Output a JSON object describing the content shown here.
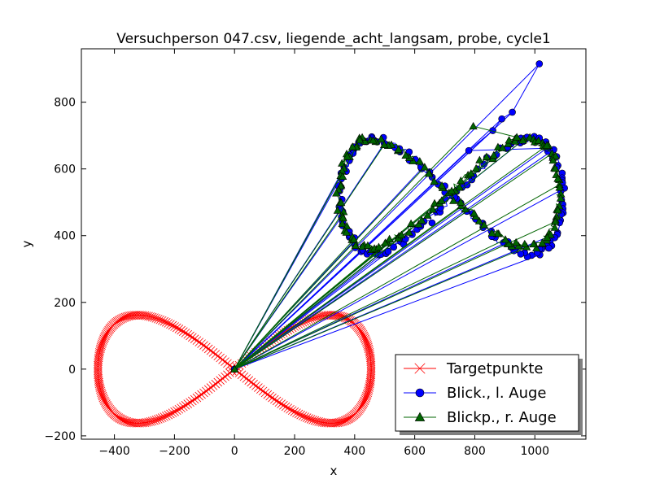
{
  "chart_data": {
    "type": "line",
    "title": "Versuchperson 047.csv, liegende_acht_langsam, probe, cycle1",
    "xlabel": "x",
    "ylabel": "y",
    "xlim": [
      -510,
      1170
    ],
    "ylim": [
      -210,
      960
    ],
    "xticks": [
      -400,
      -200,
      0,
      200,
      400,
      600,
      800,
      1000
    ],
    "yticks": [
      -200,
      0,
      200,
      400,
      600,
      800
    ],
    "xtick_labels": [
      "−400",
      "−200",
      "0",
      "200",
      "400",
      "600",
      "800",
      "1000"
    ],
    "ytick_labels": [
      "−200",
      "0",
      "200",
      "400",
      "600",
      "800"
    ],
    "grid": false,
    "legend_position": "lower-right",
    "series": [
      {
        "name": "Targetpunkte",
        "color": "#ff0000",
        "marker": "x",
        "shape": "figure-eight",
        "center": [
          0,
          0
        ],
        "half_width": 455,
        "half_height": 162
      },
      {
        "name": "Blick., l. Auge",
        "color": "#0000ff",
        "marker": "circle",
        "shape": "figure-eight",
        "center": [
          725,
          518
        ],
        "half_width": 370,
        "half_height": 172,
        "origin": [
          0,
          0
        ],
        "outliers": [
          [
            1015,
            915
          ],
          [
            925,
            770
          ],
          [
            890,
            750
          ],
          [
            860,
            715
          ],
          [
            780,
            655
          ],
          [
            1040,
            662
          ]
        ]
      },
      {
        "name": "Blickp., r. Auge",
        "color": "#006400",
        "marker": "triangle",
        "shape": "figure-eight",
        "center": [
          715,
          528
        ],
        "half_width": 368,
        "half_height": 162,
        "origin": [
          0,
          0
        ],
        "outliers": [
          [
            795,
            728
          ],
          [
            940,
            695
          ],
          [
            1040,
            670
          ]
        ]
      }
    ]
  }
}
